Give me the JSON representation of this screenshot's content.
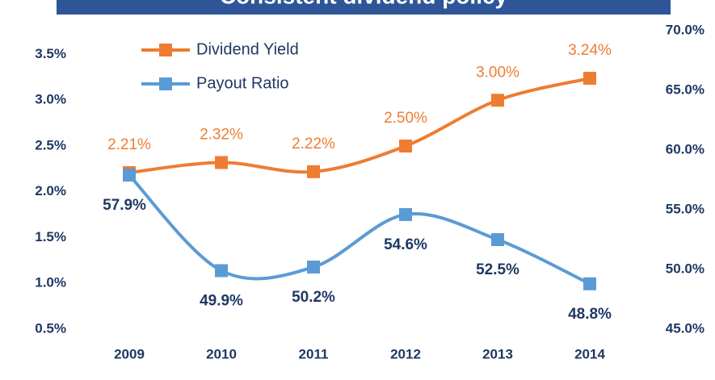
{
  "chart_data": {
    "type": "line",
    "title": "Consistent dividend policy",
    "categories": [
      "2009",
      "2010",
      "2011",
      "2012",
      "2013",
      "2014"
    ],
    "series": [
      {
        "name": "Dividend Yield",
        "color": "#ed7d31",
        "values": [
          2.21,
          2.32,
          2.22,
          2.5,
          3.0,
          3.24
        ],
        "value_labels": [
          "2.21%",
          "2.32%",
          "2.22%",
          "2.50%",
          "3.00%",
          "3.24%"
        ]
      },
      {
        "name": "Payout Ratio",
        "color": "#5b9bd5",
        "axis": "y2",
        "values": [
          57.9,
          49.9,
          50.2,
          54.6,
          52.5,
          48.8
        ],
        "value_labels": [
          "57.9%",
          "49.9%",
          "50.2%",
          "54.6%",
          "52.5%",
          "48.8%"
        ]
      }
    ],
    "ylim": [
      0.5,
      3.76
    ],
    "yticks": [
      {
        "value": 0.5,
        "label": "0.5%"
      },
      {
        "value": 1.0,
        "label": "1.0%"
      },
      {
        "value": 1.5,
        "label": "1.5%"
      },
      {
        "value": 2.0,
        "label": "2.0%"
      },
      {
        "value": 2.5,
        "label": "2.5%"
      },
      {
        "value": 3.0,
        "label": "3.0%"
      },
      {
        "value": 3.5,
        "label": "3.5%"
      }
    ],
    "y2lim": [
      45,
      70
    ],
    "y2ticks": [
      {
        "value": 45,
        "label": "45.0%"
      },
      {
        "value": 50,
        "label": "50.0%"
      },
      {
        "value": 55,
        "label": "55.0%"
      },
      {
        "value": 60,
        "label": "60.0%"
      },
      {
        "value": 65,
        "label": "65.0%"
      },
      {
        "value": 70,
        "label": "70.0%"
      }
    ],
    "legend": "upper left"
  }
}
